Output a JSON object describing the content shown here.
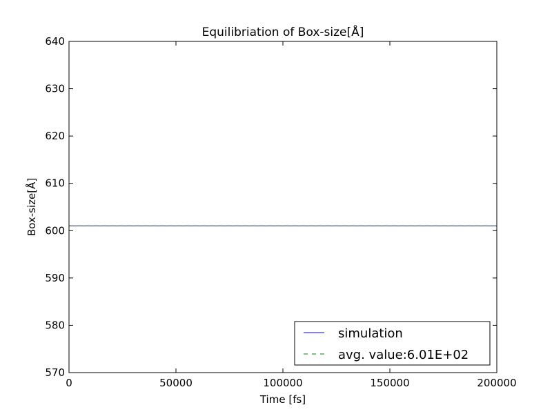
{
  "chart_data": {
    "type": "line",
    "title": "Equilibriation of Box-size[Å]",
    "xlabel": "Time [fs]",
    "ylabel": "Box-size[Å]",
    "xlim": [
      0,
      200000
    ],
    "ylim": [
      570,
      640
    ],
    "xticks": [
      0,
      50000,
      100000,
      150000,
      200000
    ],
    "xtick_labels": [
      "0",
      "50000",
      "100000",
      "150000",
      "200000"
    ],
    "yticks": [
      570,
      580,
      590,
      600,
      610,
      620,
      630,
      640
    ],
    "ytick_labels": [
      "570",
      "580",
      "590",
      "600",
      "610",
      "620",
      "630",
      "640"
    ],
    "grid": false,
    "legend_position": "bottom-right",
    "series": [
      {
        "name": "simulation",
        "color": "#0000ff",
        "style": "solid",
        "x": [
          0,
          200000
        ],
        "y": [
          601,
          601
        ]
      },
      {
        "name": "avg. value:6.01E+02",
        "color": "#008000",
        "style": "dashed",
        "x": [
          0,
          200000
        ],
        "y": [
          601,
          601
        ]
      }
    ]
  }
}
